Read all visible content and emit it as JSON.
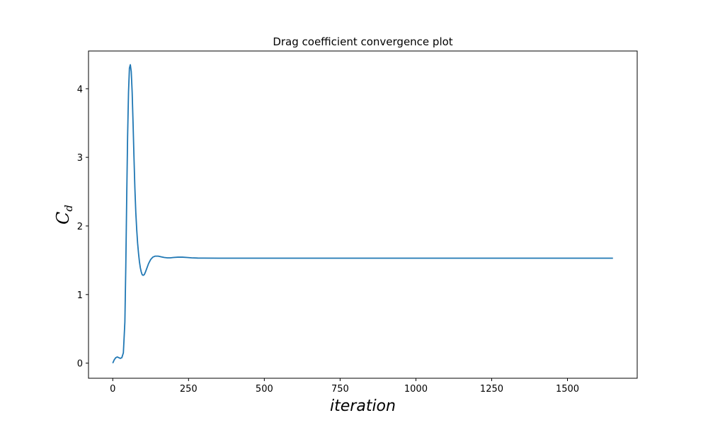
{
  "chart_data": {
    "type": "line",
    "title": "Drag coefficient convergence plot",
    "xlabel": "iteration",
    "ylabel": "C",
    "ylabel_subscript": "d",
    "xlim": [
      -80,
      1730
    ],
    "ylim": [
      -0.22,
      4.55
    ],
    "xticks": [
      0,
      250,
      500,
      750,
      1000,
      1250,
      1500
    ],
    "xtick_labels": [
      "0",
      "250",
      "500",
      "750",
      "1000",
      "1250",
      "1500"
    ],
    "yticks": [
      0,
      1,
      2,
      3,
      4
    ],
    "ytick_labels": [
      "0",
      "1",
      "2",
      "3",
      "4"
    ],
    "grid": false,
    "line_color": "#1f77b4",
    "series": [
      {
        "x": [
          0,
          5,
          10,
          15,
          20,
          25,
          30,
          35,
          40,
          43,
          46,
          49,
          52,
          55,
          58,
          61,
          64,
          67,
          70,
          73,
          76,
          79,
          82,
          85,
          88,
          91,
          94,
          97,
          100,
          104,
          108,
          113,
          118,
          125,
          132,
          140,
          150,
          160,
          170,
          180,
          190,
          200,
          215,
          230,
          245,
          260,
          280,
          300,
          350,
          400,
          500,
          600,
          700,
          800,
          900,
          1000,
          1200,
          1400,
          1650
        ],
        "values": [
          0.0,
          0.05,
          0.08,
          0.09,
          0.08,
          0.07,
          0.08,
          0.15,
          0.6,
          1.4,
          2.4,
          3.3,
          3.95,
          4.3,
          4.35,
          4.25,
          3.95,
          3.5,
          3.0,
          2.55,
          2.2,
          1.95,
          1.75,
          1.6,
          1.48,
          1.39,
          1.33,
          1.29,
          1.28,
          1.29,
          1.33,
          1.39,
          1.45,
          1.51,
          1.545,
          1.56,
          1.56,
          1.55,
          1.54,
          1.535,
          1.535,
          1.54,
          1.545,
          1.545,
          1.54,
          1.535,
          1.532,
          1.531,
          1.53,
          1.53,
          1.53,
          1.53,
          1.53,
          1.53,
          1.53,
          1.53,
          1.53,
          1.53,
          1.53
        ]
      }
    ]
  }
}
